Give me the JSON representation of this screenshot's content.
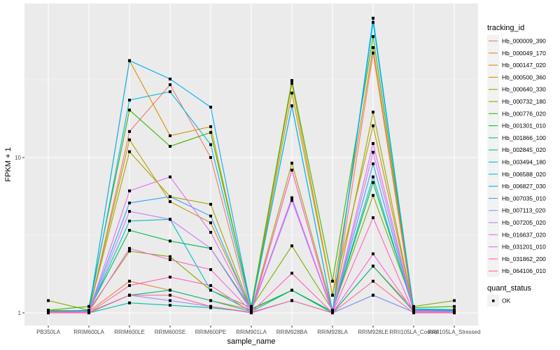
{
  "chart_data": {
    "type": "line",
    "title": "",
    "xlabel": "sample_name",
    "ylabel": "FPKM + 1",
    "y_scale": "log10",
    "ylim": [
      0.95,
      98
    ],
    "y_ticks": [
      1,
      10
    ],
    "y_tick_labels": [
      "1",
      "10"
    ],
    "grid": true,
    "legend_position": "right",
    "categories": [
      "PB350LA",
      "RRIM600LA",
      "RRIM600LE",
      "RRIM600SE",
      "RRIM600PE",
      "RRIM901LA",
      "RRIM928BA",
      "RRIM928LA",
      "RRIM928LE",
      "RRII105LA_Control",
      "RRII105LA_Stressed"
    ],
    "color_legend_title": "tracking_id",
    "shape_legend_title": "quant_status",
    "shape_legend_entries": [
      {
        "label": "OK",
        "shape": "square"
      }
    ],
    "series": [
      {
        "name": "Hb_000009_390",
        "color": "#F8766D",
        "values": [
          1.02,
          1.0,
          14.7,
          29.4,
          10.0,
          1.0,
          8.3,
          1.0,
          47,
          1.0,
          1.02
        ]
      },
      {
        "name": "Hb_000049_170",
        "color": "#EA8331",
        "values": [
          1.03,
          1.02,
          1.6,
          1.4,
          1.2,
          1.05,
          1.4,
          1.0,
          2.0,
          1.05,
          1.03
        ]
      },
      {
        "name": "Hb_000147_020",
        "color": "#D89000",
        "values": [
          1.04,
          1.03,
          42,
          13.8,
          15.8,
          1.06,
          30,
          1.3,
          51,
          1.06,
          1.04
        ]
      },
      {
        "name": "Hb_000500_360",
        "color": "#C09B00",
        "values": [
          1.03,
          1.02,
          13,
          5.2,
          3.8,
          1.05,
          26,
          1.3,
          16,
          1.05,
          1.04
        ]
      },
      {
        "name": "Hb_000640_330",
        "color": "#A3A500",
        "values": [
          1.03,
          1.03,
          10.9,
          5.6,
          5.0,
          1.04,
          9.2,
          1.04,
          19.6,
          1.04,
          1.03
        ]
      },
      {
        "name": "Hb_000732_180",
        "color": "#7CAE00",
        "values": [
          1.2,
          1.04,
          2.5,
          2.3,
          1.4,
          1.08,
          2.7,
          1.04,
          5.7,
          1.1,
          1.2
        ]
      },
      {
        "name": "Hb_000776_020",
        "color": "#39B600",
        "values": [
          1.04,
          1.1,
          20.2,
          11.8,
          14.5,
          1.1,
          31.3,
          1.6,
          60,
          1.08,
          1.1
        ]
      },
      {
        "name": "Hb_001301_010",
        "color": "#00BB4E",
        "values": [
          1.02,
          1.04,
          3.4,
          2.9,
          2.6,
          1.06,
          1.4,
          1.02,
          6.9,
          1.06,
          1.05
        ]
      },
      {
        "name": "Hb_001866_100",
        "color": "#00BF7D",
        "values": [
          1.01,
          1.01,
          1.3,
          1.4,
          1.2,
          1.02,
          1.4,
          1.0,
          2.0,
          1.02,
          1.01
        ]
      },
      {
        "name": "Hb_002845_020",
        "color": "#00C1A3",
        "values": [
          1.0,
          1.0,
          1.16,
          1.12,
          1.08,
          1.01,
          1.2,
          1.0,
          1.3,
          1.01,
          1.0
        ]
      },
      {
        "name": "Hb_003494_180",
        "color": "#00BFC4",
        "values": [
          1.01,
          1.02,
          3.9,
          4.0,
          1.4,
          1.03,
          5.3,
          1.01,
          7.5,
          1.03,
          1.02
        ]
      },
      {
        "name": "Hb_006588_020",
        "color": "#00BAE0",
        "values": [
          1.02,
          1.03,
          23.4,
          26.5,
          12.1,
          1.06,
          21.5,
          1.02,
          74,
          1.05,
          1.03
        ]
      },
      {
        "name": "Hb_006827_030",
        "color": "#00B0F6",
        "values": [
          1.02,
          1.03,
          42,
          32,
          21.1,
          1.07,
          21.5,
          1.02,
          78.8,
          1.06,
          1.04
        ]
      },
      {
        "name": "Hb_007035_010",
        "color": "#35A2FF",
        "values": [
          1.01,
          1.02,
          5.1,
          5.6,
          4.2,
          1.03,
          5.5,
          1.01,
          9.1,
          1.03,
          1.02
        ]
      },
      {
        "name": "Hb_007113_020",
        "color": "#9590FF",
        "values": [
          1.0,
          1.0,
          1.3,
          1.2,
          1.1,
          1.01,
          1.2,
          1.0,
          1.3,
          1.01,
          1.0
        ]
      },
      {
        "name": "Hb_007205_020",
        "color": "#C77CFF",
        "values": [
          1.01,
          1.01,
          4.5,
          4.0,
          2.6,
          1.03,
          5.3,
          1.0,
          10.8,
          1.02,
          1.01
        ]
      },
      {
        "name": "Hb_016637_020",
        "color": "#E76BF3",
        "values": [
          1.01,
          1.02,
          6.1,
          7.5,
          3.3,
          1.04,
          5.5,
          1.01,
          12.3,
          1.03,
          1.02
        ]
      },
      {
        "name": "Hb_031201_010",
        "color": "#FA62DB",
        "values": [
          1.0,
          1.01,
          2.6,
          2.2,
          1.9,
          1.02,
          8.3,
          1.0,
          2.4,
          1.02,
          1.01
        ]
      },
      {
        "name": "Hb_031862_200",
        "color": "#FF62BC",
        "values": [
          1.0,
          1.0,
          1.5,
          1.7,
          1.5,
          1.01,
          1.8,
          1.0,
          4.1,
          1.0,
          1.0
        ]
      },
      {
        "name": "Hb_064106_010",
        "color": "#FF6A98",
        "values": [
          1.0,
          1.0,
          1.3,
          1.3,
          1.1,
          1.0,
          1.2,
          1.0,
          1.6,
          1.0,
          1.0
        ]
      }
    ]
  }
}
